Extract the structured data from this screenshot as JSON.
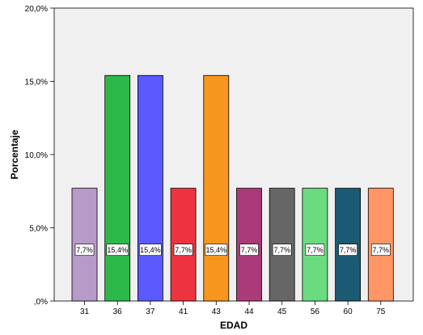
{
  "chart_data": {
    "type": "bar",
    "xlabel": "EDAD",
    "ylabel": "Porcentaje",
    "categories": [
      "31",
      "36",
      "37",
      "41",
      "43",
      "44",
      "45",
      "56",
      "60",
      "75"
    ],
    "values": [
      7.7,
      15.4,
      15.4,
      7.7,
      15.4,
      7.7,
      7.7,
      7.7,
      7.7,
      7.7
    ],
    "data_labels": [
      "7,7%",
      "15,4%",
      "15,4%",
      "7,7%",
      "15,4%",
      "7,7%",
      "7,7%",
      "7,7%",
      "7,7%",
      "7,7%"
    ],
    "ylim": [
      0,
      20
    ],
    "yticks": [
      0,
      5,
      10,
      15,
      20
    ],
    "ytick_labels": [
      ",0%",
      "5,0%",
      "10,0%",
      "15,0%",
      "20,0%"
    ],
    "grid": false,
    "plot_background": "#f0f0f0",
    "bar_colors": [
      "#b79ac8",
      "#2db84a",
      "#5a5aff",
      "#ee3340",
      "#f7961e",
      "#ab3a78",
      "#666666",
      "#6bdb7f",
      "#1b5a72",
      "#ff9666"
    ]
  }
}
